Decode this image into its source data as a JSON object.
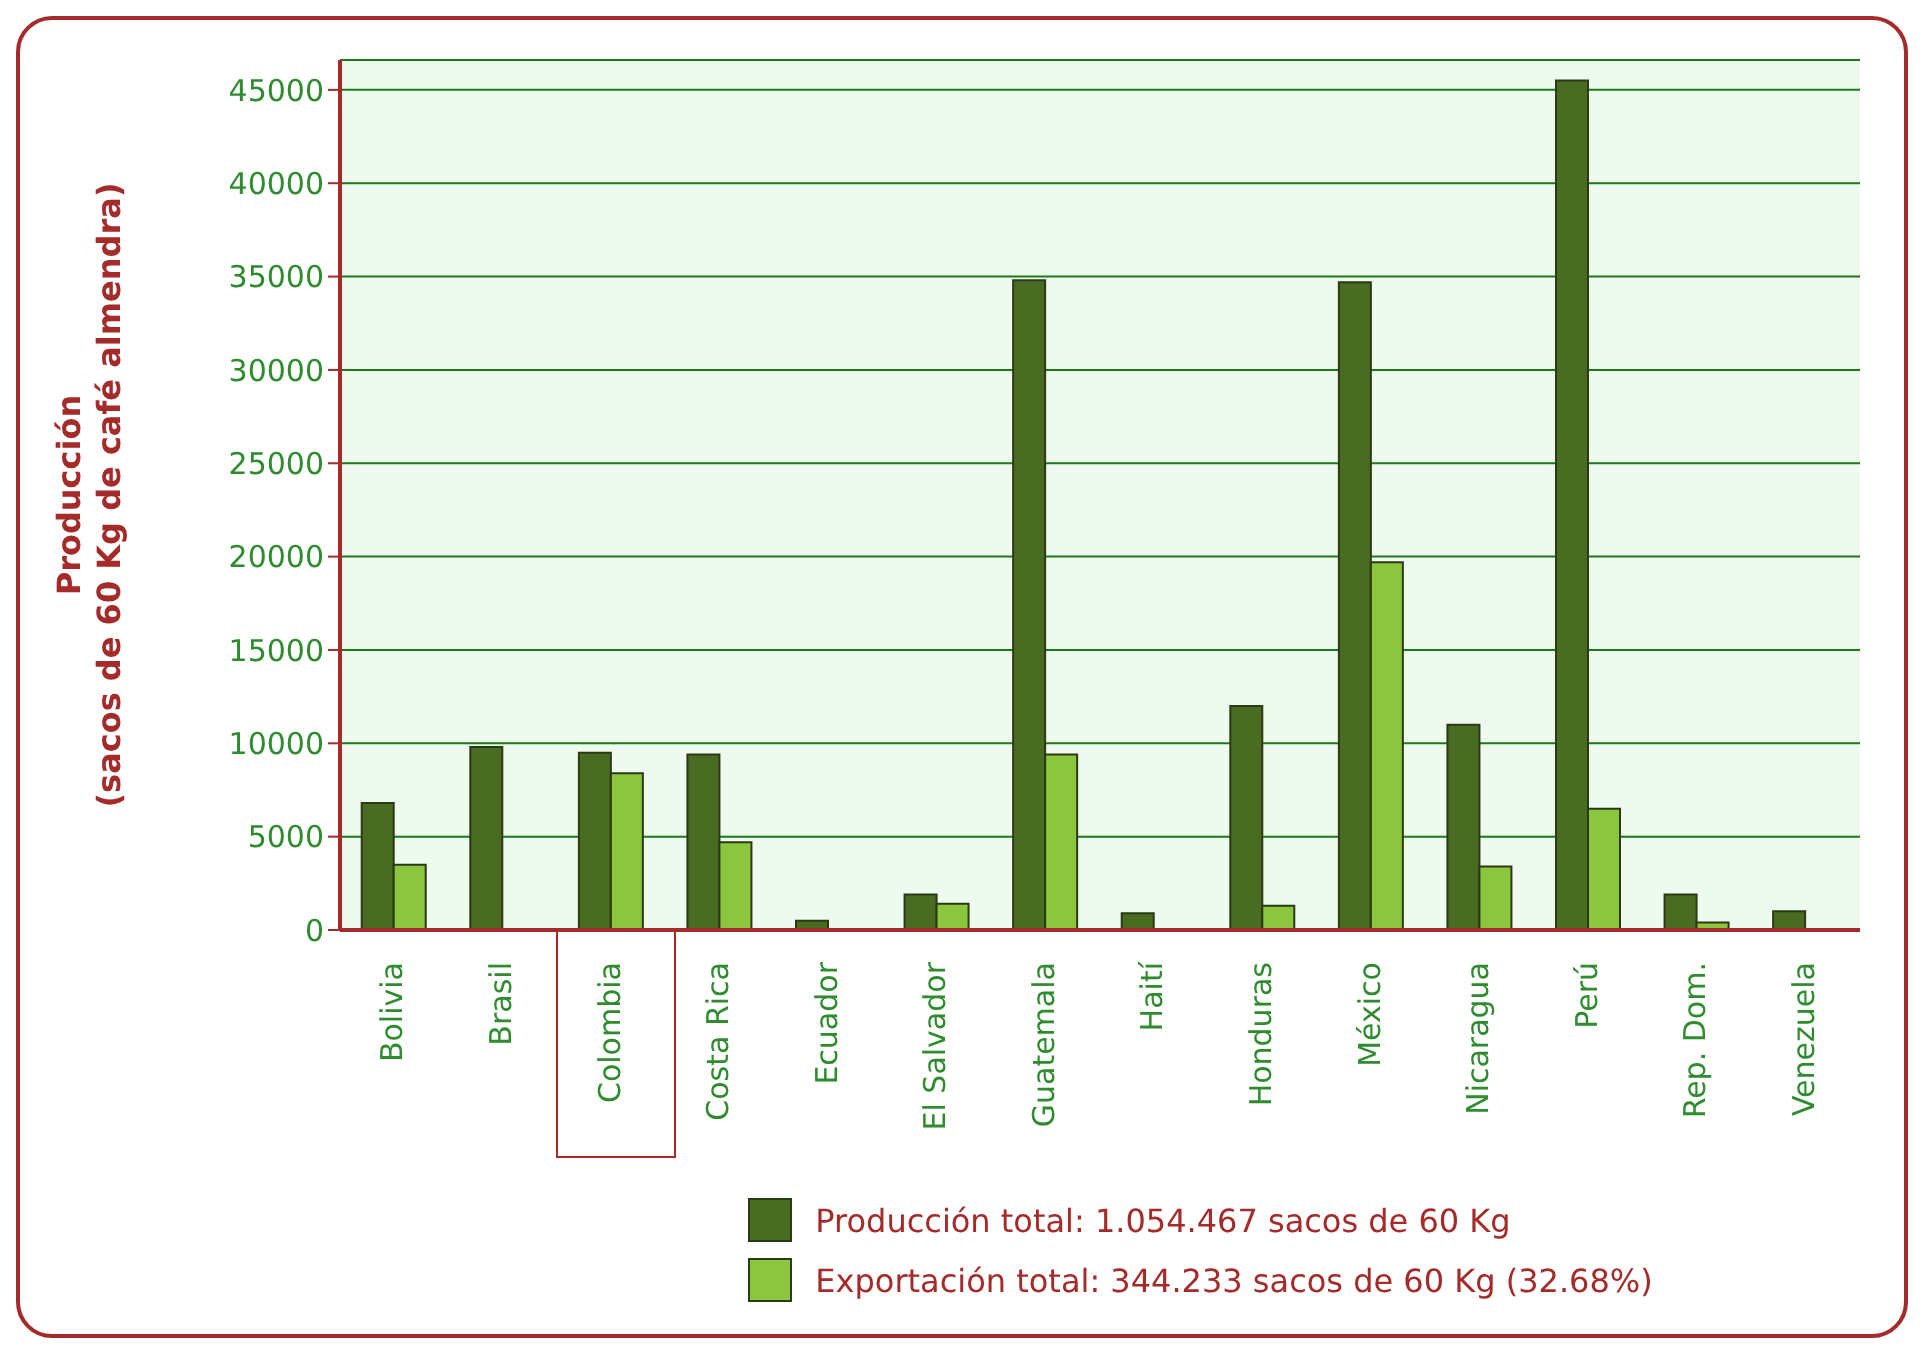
{
  "chart_data": {
    "type": "bar",
    "ylabel": "Producción\n(sacos de 60 Kg de café almendra)",
    "categories": [
      "Bolivia",
      "Brasil",
      "Colombia",
      "Costa Rica",
      "Ecuador",
      "El Salvador",
      "Guatemala",
      "Haití",
      "Honduras",
      "México",
      "Nicaragua",
      "Perú",
      "Rep. Dom.",
      "Venezuela"
    ],
    "series": [
      {
        "name": "Producción total: 1.054.467 sacos de 60 Kg",
        "color": "#4a6b22",
        "values": [
          6800,
          9800,
          9500,
          9400,
          500,
          1900,
          34800,
          900,
          12000,
          34700,
          11000,
          45500,
          1900,
          1000
        ]
      },
      {
        "name": "Exportación total: 344.233 sacos de 60 Kg (32.68%)",
        "color": "#8cc63f",
        "values": [
          3500,
          0,
          8400,
          4700,
          0,
          1400,
          9400,
          0,
          1300,
          19700,
          3400,
          6500,
          400,
          0
        ]
      }
    ],
    "ylim": [
      0,
      46600
    ],
    "yticks": [
      0,
      5000,
      10000,
      15000,
      20000,
      25000,
      30000,
      35000,
      40000,
      45000
    ],
    "grid": "y",
    "legend": "bottom"
  }
}
